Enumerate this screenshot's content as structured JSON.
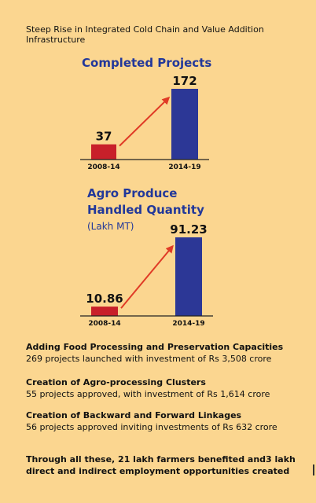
{
  "page_title": "Steep Rise in Integrated Cold Chain and Value Addition Infrastructure",
  "colors": {
    "background": "#fbd690",
    "past_bar": "#c8202a",
    "recent_bar": "#2c3796",
    "arrow": "#e03b26",
    "title": "#22389a"
  },
  "chart_data": [
    {
      "type": "bar",
      "title": "Completed Projects",
      "unit": "",
      "categories": [
        "2008-14",
        "2014-19"
      ],
      "values": [
        37,
        172
      ],
      "value_labels": [
        "37",
        "172"
      ]
    },
    {
      "type": "bar",
      "title_line1": "Agro Produce",
      "title_line2": "Handled Quantity",
      "unit": "(Lakh MT)",
      "categories": [
        "2008-14",
        "2014-19"
      ],
      "values": [
        10.86,
        91.23
      ],
      "value_labels": [
        "10.86",
        "91.23"
      ]
    }
  ],
  "sections": [
    {
      "heading": "Adding Food Processing and Preservation Capacities",
      "text": "269 projects launched with investment of Rs 3,508 crore"
    },
    {
      "heading": "Creation of Agro-processing Clusters",
      "text": "55 projects approved, with investment of Rs 1,614 crore"
    },
    {
      "heading": "Creation of Backward and Forward Linkages",
      "text": "56 projects approved inviting investments of Rs 632 crore"
    }
  ],
  "closing": "Through all these, 21 lakh farmers benefited and3 lakh direct and indirect employment opportunities created"
}
